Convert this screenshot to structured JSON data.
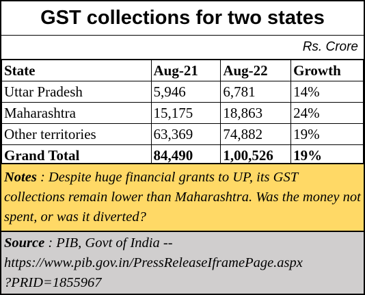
{
  "chart_data": {
    "type": "table",
    "title": "GST collections for two states",
    "unit": "Rs. Crore",
    "columns": [
      "State",
      "Aug-21",
      "Aug-22",
      "Growth"
    ],
    "rows": [
      [
        "Uttar Pradesh",
        "5,946",
        "6,781",
        "14%"
      ],
      [
        "Maharashtra",
        "15,175",
        "18,863",
        "24%"
      ],
      [
        "Other territories",
        "63,369",
        "74,882",
        "19%"
      ]
    ],
    "total": [
      "Grand Total",
      "84,490",
      "1,00,526",
      "19%"
    ]
  },
  "notes": {
    "label": "Notes",
    "text": " : Despite huge financial grants to UP, its GST collections remain lower than Maharashtra.  Was the money not spent, or was it diverted?"
  },
  "source": {
    "label": "Source",
    "text": " : PIB, Govt of India --",
    "url_line1": "https://www.pib.gov.in/PressReleaseIframePage.aspx",
    "url_line2": "?PRID=1855967"
  },
  "colors": {
    "notes_bg": "#ffd966",
    "source_bg": "#d0cece",
    "border": "#000000"
  }
}
